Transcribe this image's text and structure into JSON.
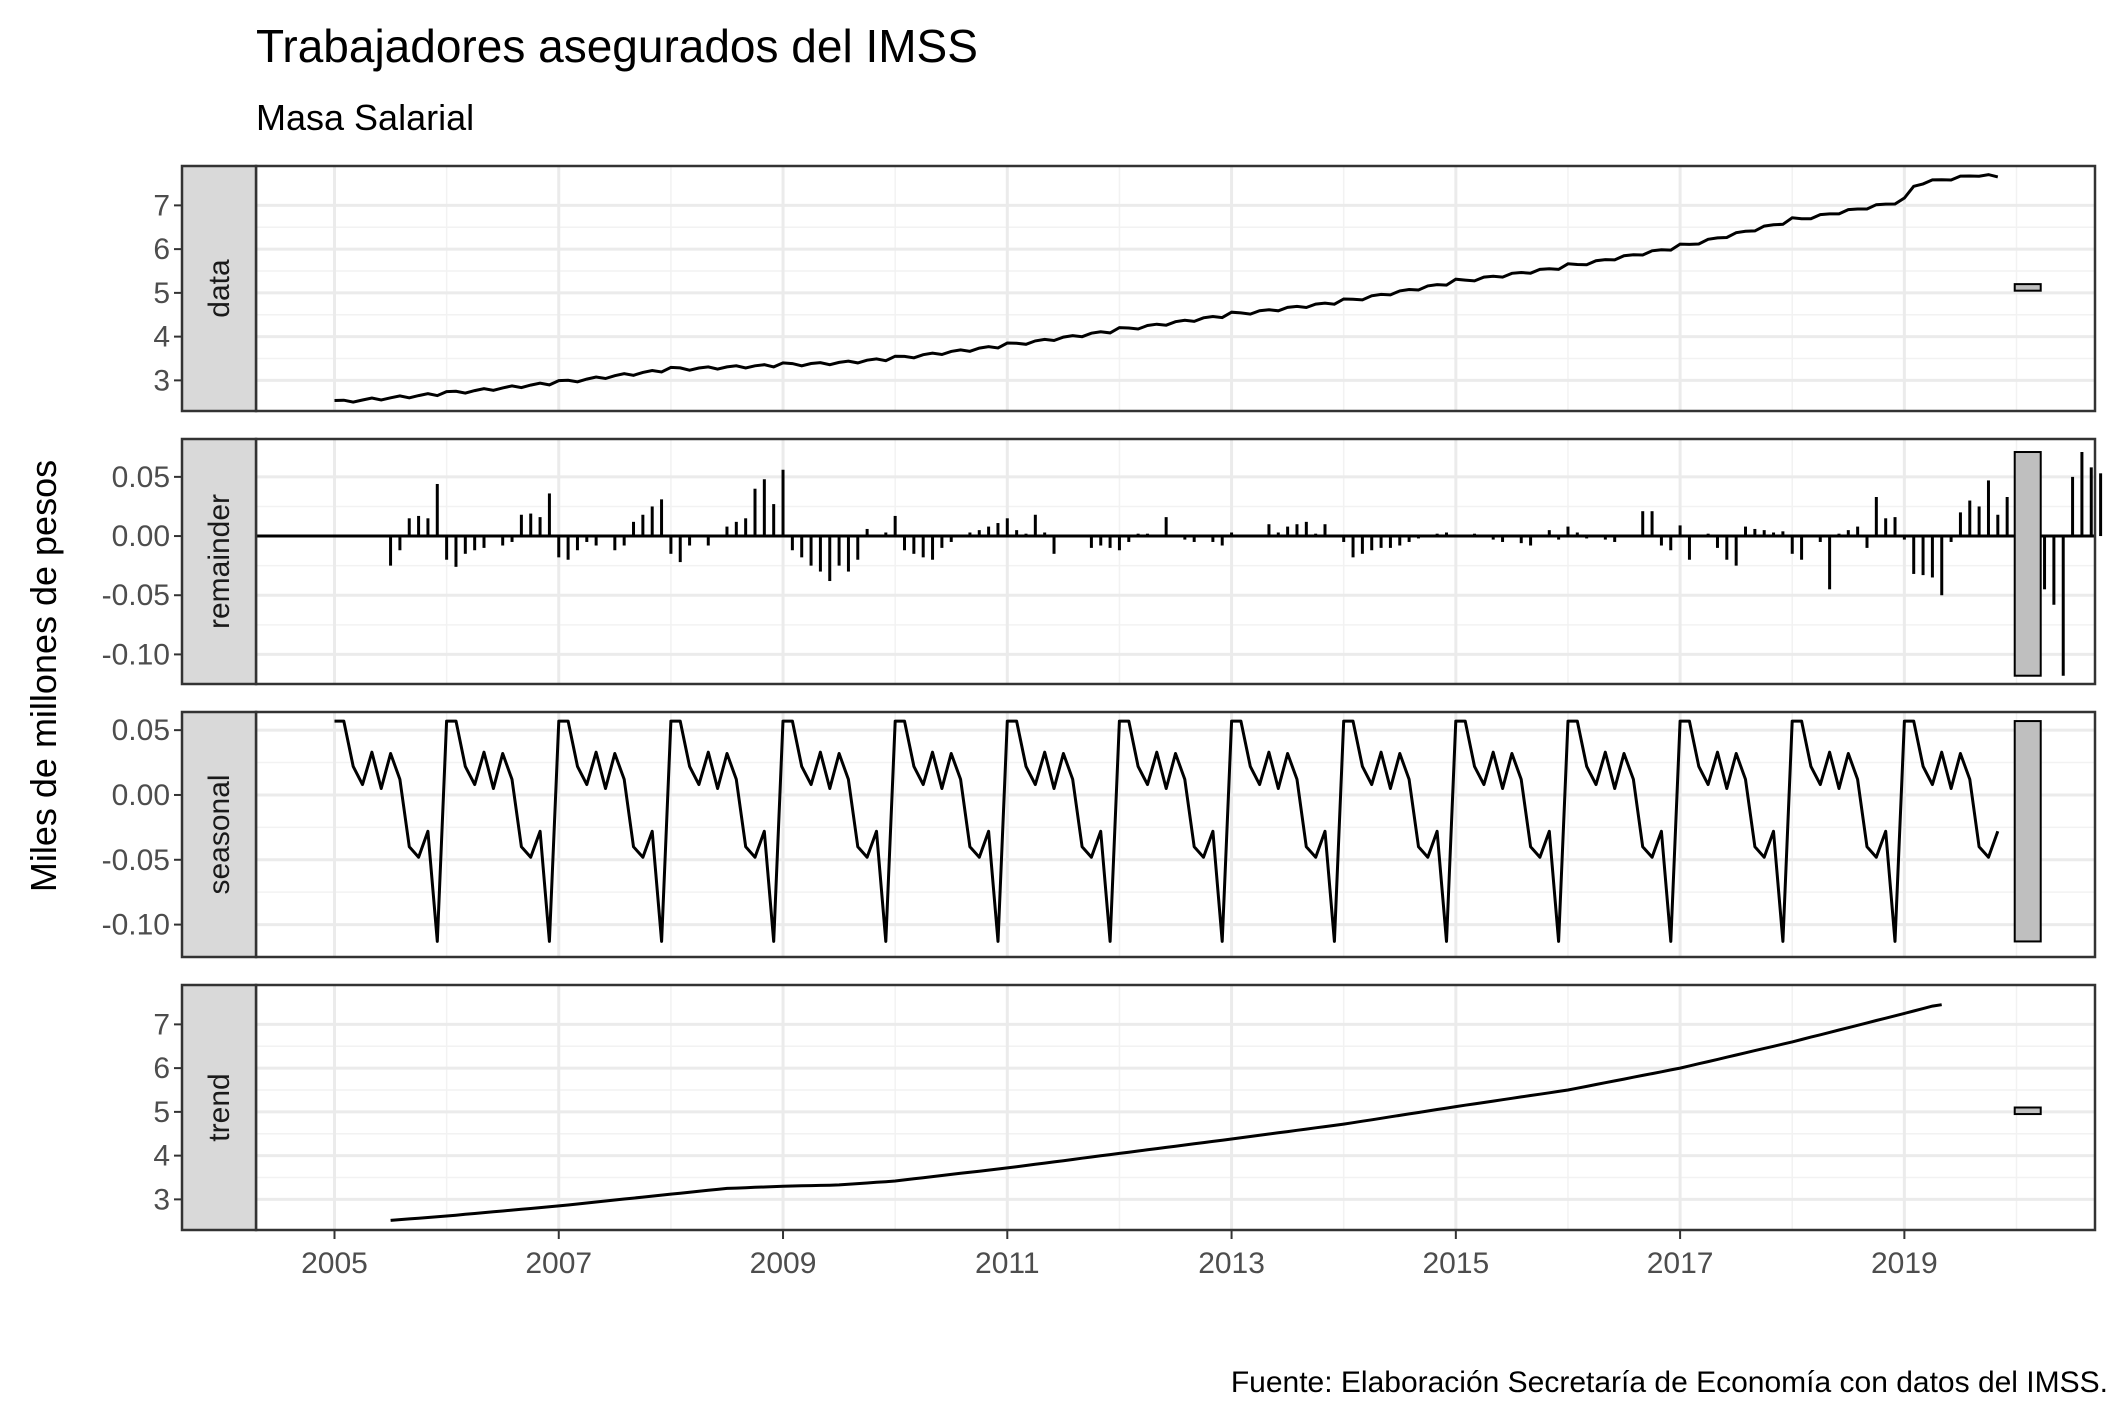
{
  "chart_data": {
    "type": "line",
    "title": "Trabajadores asegurados del IMSS",
    "subtitle": "Masa Salarial",
    "ylabel": "Miles de millones de pesos",
    "caption": "Fuente: Elaboración Secretaría de Economía con datos del IMSS.",
    "xlim": [
      2004.3,
      2020.7
    ],
    "x_ticks": [
      2005,
      2007,
      2009,
      2011,
      2013,
      2015,
      2017,
      2019
    ],
    "x_tick_labels": [
      "2005",
      "2007",
      "2009",
      "2011",
      "2013",
      "2015",
      "2017",
      "2019"
    ],
    "panels": [
      {
        "strip": "data",
        "kind": "line",
        "ylim": [
          2.3,
          7.9
        ],
        "y_ticks": [
          3,
          4,
          5,
          6,
          7
        ],
        "y_tick_labels": [
          "3",
          "4",
          "5",
          "6",
          "7"
        ],
        "anchors": [
          [
            2005.0,
            2.5
          ],
          [
            2006.0,
            2.7
          ],
          [
            2007.0,
            2.95
          ],
          [
            2008.0,
            3.25
          ],
          [
            2009.0,
            3.35
          ],
          [
            2009.5,
            3.4
          ],
          [
            2010.0,
            3.5
          ],
          [
            2011.0,
            3.8
          ],
          [
            2012.0,
            4.15
          ],
          [
            2013.0,
            4.5
          ],
          [
            2014.0,
            4.8
          ],
          [
            2015.0,
            5.25
          ],
          [
            2016.0,
            5.6
          ],
          [
            2017.0,
            6.05
          ],
          [
            2018.0,
            6.65
          ],
          [
            2019.0,
            7.1
          ],
          [
            2019.1,
            7.5
          ],
          [
            2019.67,
            7.7
          ],
          [
            2019.83,
            7.65
          ]
        ],
        "scale_bar": [
          5.05,
          5.2
        ]
      },
      {
        "strip": "remainder",
        "kind": "bar",
        "ylim": [
          -0.125,
          0.082
        ],
        "y_ticks": [
          0.05,
          0.0,
          -0.05,
          -0.1
        ],
        "y_tick_labels": [
          "0.05",
          "0.00",
          "-0.05",
          "-0.10"
        ],
        "start": 2005.0,
        "values": [
          0,
          0,
          0,
          0,
          0,
          0,
          -0.025,
          -0.012,
          0.015,
          0.017,
          0.015,
          0.044,
          -0.02,
          -0.026,
          -0.015,
          -0.012,
          -0.01,
          0,
          -0.008,
          -0.005,
          0.018,
          0.019,
          0.016,
          0.036,
          -0.018,
          -0.02,
          -0.012,
          -0.005,
          -0.008,
          0,
          -0.012,
          -0.008,
          0.012,
          0.018,
          0.025,
          0.031,
          -0.015,
          -0.022,
          -0.008,
          0,
          -0.008,
          0,
          0.008,
          0.012,
          0.015,
          0.04,
          0.048,
          0.027,
          0.056,
          -0.012,
          -0.018,
          -0.025,
          -0.03,
          -0.038,
          -0.025,
          -0.03,
          -0.02,
          0.006,
          0,
          0.003,
          0.017,
          -0.012,
          -0.015,
          -0.018,
          -0.02,
          -0.01,
          -0.005,
          0,
          0.003,
          0.005,
          0.008,
          0.011,
          0.015,
          0.005,
          0.002,
          0.018,
          0.003,
          -0.015,
          0,
          0,
          0,
          -0.01,
          -0.008,
          -0.01,
          -0.012,
          -0.005,
          0.002,
          0.002,
          0,
          0.016,
          0,
          -0.003,
          -0.005,
          0,
          -0.005,
          -0.008,
          0.003,
          0,
          0,
          0,
          0.01,
          0.003,
          0.008,
          0.01,
          0.012,
          0.002,
          0.01,
          0,
          -0.005,
          -0.018,
          -0.015,
          -0.012,
          -0.01,
          -0.01,
          -0.008,
          -0.005,
          -0.002,
          0,
          0.002,
          0.003,
          0,
          0,
          0.002,
          0,
          -0.003,
          -0.005,
          0,
          -0.006,
          -0.008,
          0,
          0.005,
          -0.003,
          0.008,
          0.003,
          -0.002,
          0,
          -0.003,
          -0.005,
          0,
          0,
          0.021,
          0.021,
          -0.008,
          -0.012,
          0.009,
          -0.02,
          0,
          0.002,
          -0.01,
          -0.02,
          -0.025,
          0.008,
          0.006,
          0.005,
          0.003,
          0.004,
          -0.015,
          -0.02,
          0,
          -0.005,
          -0.045,
          0.002,
          0.005,
          0.008,
          -0.01,
          0.033,
          0.015,
          0.016,
          -0.003,
          -0.032,
          -0.033,
          -0.035,
          -0.05,
          -0.005,
          0.02,
          0.03,
          0.025,
          0.047,
          0.018,
          0.033,
          0.012,
          -0.035,
          -0.055,
          -0.045,
          -0.058,
          -0.118,
          0.05,
          0.071,
          0.058,
          0.053
        ]
      },
      {
        "strip": "seasonal",
        "kind": "seasonal",
        "ylim": [
          -0.125,
          0.064
        ],
        "y_ticks": [
          0.05,
          0.0,
          -0.05,
          -0.1
        ],
        "y_tick_labels": [
          "0.05",
          "0.00",
          "-0.05",
          "-0.10"
        ],
        "start": 2005.0,
        "end": 2019.83,
        "pattern": [
          0.057,
          0.057,
          0.022,
          0.008,
          0.033,
          0.005,
          0.032,
          0.012,
          -0.04,
          -0.048,
          -0.028,
          -0.113
        ]
      },
      {
        "strip": "trend",
        "kind": "line",
        "ylim": [
          2.3,
          7.9
        ],
        "y_ticks": [
          3,
          4,
          5,
          6,
          7
        ],
        "y_tick_labels": [
          "3",
          "4",
          "5",
          "6",
          "7"
        ],
        "anchors": [
          [
            2005.5,
            2.52
          ],
          [
            2006.0,
            2.62
          ],
          [
            2007.0,
            2.85
          ],
          [
            2008.0,
            3.12
          ],
          [
            2008.5,
            3.25
          ],
          [
            2009.0,
            3.3
          ],
          [
            2009.5,
            3.33
          ],
          [
            2010.0,
            3.42
          ],
          [
            2011.0,
            3.72
          ],
          [
            2012.0,
            4.05
          ],
          [
            2013.0,
            4.38
          ],
          [
            2014.0,
            4.72
          ],
          [
            2015.0,
            5.12
          ],
          [
            2016.0,
            5.5
          ],
          [
            2017.0,
            6.0
          ],
          [
            2018.0,
            6.6
          ],
          [
            2019.0,
            7.25
          ],
          [
            2019.3,
            7.45
          ]
        ],
        "scale_bar": [
          4.95,
          5.1
        ]
      }
    ]
  }
}
